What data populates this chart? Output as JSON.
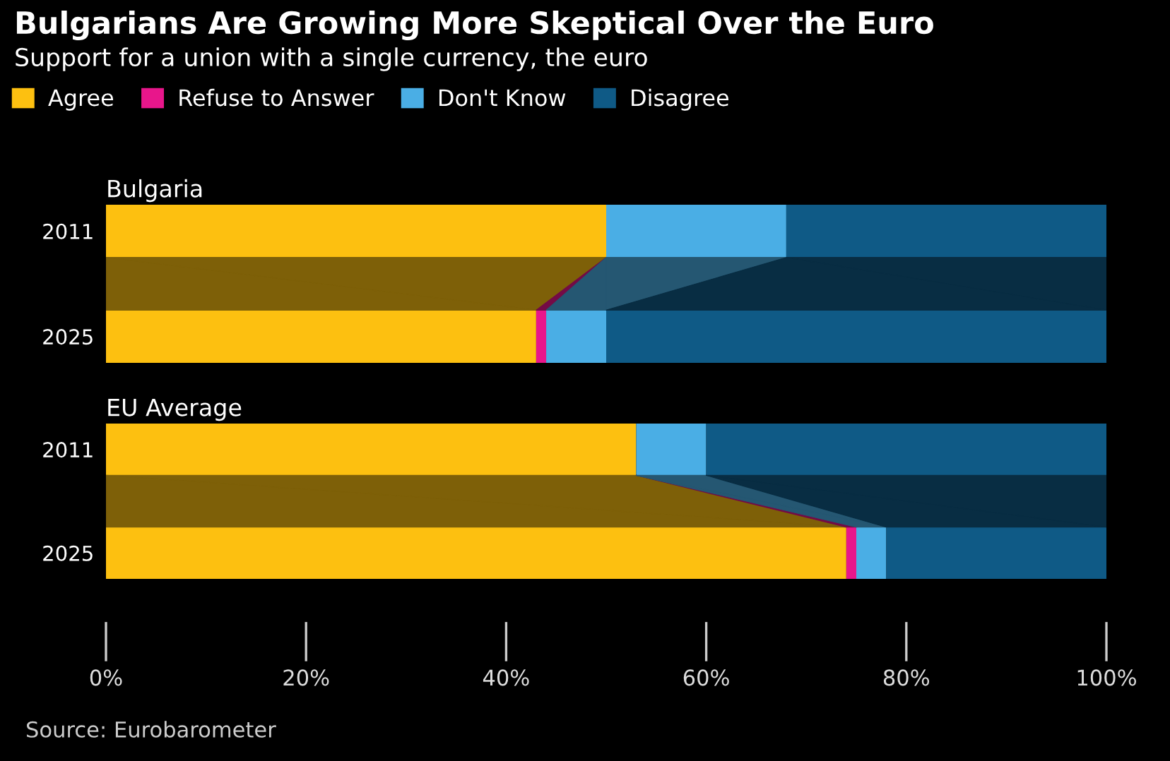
{
  "chart_data": [
    {
      "type": "bar",
      "orientation": "horizontal",
      "stacked": true,
      "title": "Bulgarians Are Growing More Skeptical Over the Euro",
      "subtitle": "Support for a union with a single currency, the euro",
      "annotations": [
        "Bulgaria"
      ],
      "legend": "top",
      "tick_labels": "y",
      "grid": false,
      "categories": [
        "2011",
        "2025"
      ],
      "xlim": [
        0,
        100
      ],
      "series": [
        {
          "name": "Agree",
          "color": "#fdc010",
          "values": [
            50,
            43
          ]
        },
        {
          "name": "Refuse to Answer",
          "color": "#e8168b",
          "values": [
            0,
            1
          ]
        },
        {
          "name": "Don't Know",
          "color": "#4aaee5",
          "values": [
            18,
            6
          ]
        },
        {
          "name": "Disagree",
          "color": "#0f5a86",
          "values": [
            32,
            50
          ]
        }
      ]
    },
    {
      "type": "bar",
      "orientation": "horizontal",
      "stacked": true,
      "annotations": [
        "EU Average",
        "Source: Eurobarometer"
      ],
      "grid": false,
      "categories": [
        "2011",
        "2025"
      ],
      "xlim": [
        0,
        100
      ],
      "xticks": [
        {
          "value": 0,
          "label": "0%"
        },
        {
          "value": 20,
          "label": "20%"
        },
        {
          "value": 40,
          "label": "40%"
        },
        {
          "value": 60,
          "label": "60%"
        },
        {
          "value": 80,
          "label": "80%"
        },
        {
          "value": 100,
          "label": "100%"
        }
      ],
      "series": [
        {
          "color": "#fdc010",
          "values": [
            53,
            74
          ]
        },
        {
          "color": "#e8168b",
          "values": [
            0,
            1
          ]
        },
        {
          "color": "#4aaee5",
          "values": [
            7,
            3
          ]
        },
        {
          "color": "#0f5a86",
          "values": [
            40,
            22
          ]
        }
      ]
    }
  ]
}
